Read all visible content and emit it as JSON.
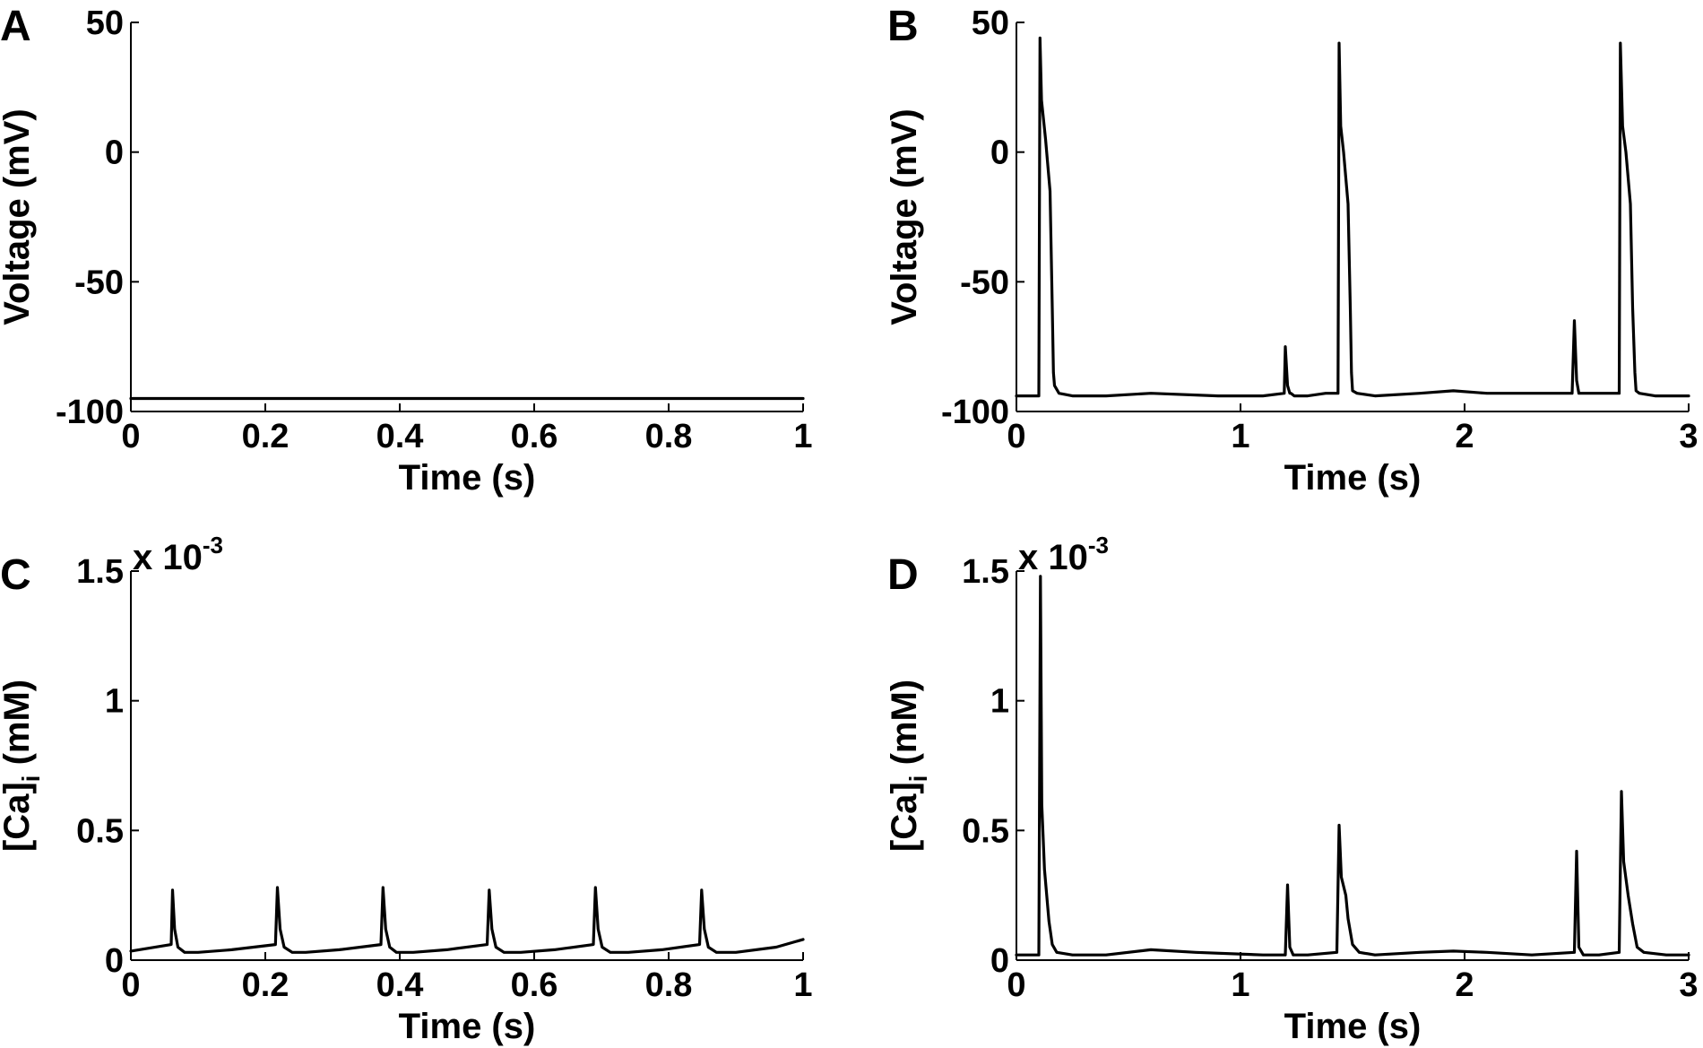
{
  "chart_data": [
    {
      "id": "A",
      "panel_label": "A",
      "type": "line",
      "xlabel": "Time (s)",
      "ylabel": "Voltage (mV)",
      "xlim": [
        0,
        1
      ],
      "ylim": [
        -100,
        50
      ],
      "xticks": [
        0,
        0.2,
        0.4,
        0.6,
        0.8,
        1
      ],
      "xtick_labels": [
        "0",
        "0.2",
        "0.4",
        "0.6",
        "0.8",
        "1"
      ],
      "yticks": [
        -100,
        -50,
        0,
        50
      ],
      "ytick_labels": [
        "-100",
        "-50",
        "0",
        "50"
      ],
      "exponent": null,
      "series": [
        {
          "x": [
            0,
            1
          ],
          "y": [
            -95,
            -95
          ]
        }
      ]
    },
    {
      "id": "B",
      "panel_label": "B",
      "type": "line",
      "xlabel": "Time (s)",
      "ylabel": "Voltage (mV)",
      "xlim": [
        0,
        3
      ],
      "ylim": [
        -100,
        50
      ],
      "xticks": [
        0,
        1,
        2,
        3
      ],
      "xtick_labels": [
        "0",
        "1",
        "2",
        "3"
      ],
      "yticks": [
        -100,
        -50,
        0,
        50
      ],
      "ytick_labels": [
        "-100",
        "-50",
        "0",
        "50"
      ],
      "exponent": null,
      "series": [
        {
          "x": [
            0,
            0.1,
            0.105,
            0.112,
            0.13,
            0.15,
            0.16,
            0.165,
            0.17,
            0.19,
            0.25,
            0.4,
            0.6,
            0.9,
            1.1,
            1.195,
            1.2,
            1.21,
            1.22,
            1.225,
            1.24,
            1.3,
            1.38,
            1.435,
            1.44,
            1.447,
            1.46,
            1.48,
            1.49,
            1.495,
            1.5,
            1.52,
            1.6,
            1.8,
            1.95,
            2.1,
            2.3,
            2.48,
            2.49,
            2.5,
            2.51,
            2.52,
            2.55,
            2.6,
            2.69,
            2.695,
            2.705,
            2.72,
            2.74,
            2.75,
            2.76,
            2.765,
            2.78,
            2.85,
            3.0
          ],
          "y": [
            -94,
            -94,
            44,
            20,
            5,
            -15,
            -60,
            -85,
            -90,
            -93,
            -94,
            -94,
            -93,
            -94,
            -94,
            -93,
            -75,
            -90,
            -93,
            -93,
            -94,
            -94,
            -93,
            -93,
            42,
            10,
            0,
            -20,
            -60,
            -85,
            -92,
            -93,
            -94,
            -93,
            -92,
            -93,
            -93,
            -93,
            -65,
            -88,
            -93,
            -93,
            -93,
            -93,
            -93,
            42,
            10,
            0,
            -20,
            -60,
            -85,
            -92,
            -93,
            -94,
            -94
          ]
        }
      ]
    },
    {
      "id": "C",
      "panel_label": "C",
      "type": "line",
      "xlabel": "Time (s)",
      "ylabel": "[Ca]",
      "ylabel_sub": "i",
      "ylabel_unit": " (mM)",
      "xlim": [
        0,
        1
      ],
      "ylim": [
        0,
        1.5
      ],
      "xticks": [
        0,
        0.2,
        0.4,
        0.6,
        0.8,
        1
      ],
      "xtick_labels": [
        "0",
        "0.2",
        "0.4",
        "0.6",
        "0.8",
        "1"
      ],
      "yticks": [
        0,
        0.5,
        1,
        1.5
      ],
      "ytick_labels": [
        "0",
        "0.5",
        "1",
        "1.5"
      ],
      "exponent": {
        "text": "x 10",
        "power": "-3"
      },
      "series": [
        {
          "x": [
            0,
            0.06,
            0.062,
            0.065,
            0.07,
            0.08,
            0.1,
            0.15,
            0.215,
            0.218,
            0.222,
            0.228,
            0.24,
            0.26,
            0.31,
            0.372,
            0.375,
            0.379,
            0.385,
            0.395,
            0.42,
            0.47,
            0.53,
            0.533,
            0.537,
            0.543,
            0.555,
            0.58,
            0.63,
            0.688,
            0.691,
            0.695,
            0.701,
            0.713,
            0.74,
            0.79,
            0.846,
            0.849,
            0.853,
            0.859,
            0.871,
            0.9,
            0.96,
            1.0
          ],
          "y": [
            0.035,
            0.06,
            0.27,
            0.12,
            0.05,
            0.03,
            0.03,
            0.04,
            0.06,
            0.28,
            0.12,
            0.05,
            0.03,
            0.03,
            0.04,
            0.06,
            0.28,
            0.12,
            0.05,
            0.03,
            0.03,
            0.04,
            0.06,
            0.27,
            0.12,
            0.05,
            0.03,
            0.03,
            0.04,
            0.06,
            0.28,
            0.12,
            0.05,
            0.03,
            0.03,
            0.04,
            0.06,
            0.27,
            0.12,
            0.05,
            0.03,
            0.03,
            0.05,
            0.08
          ]
        }
      ]
    },
    {
      "id": "D",
      "panel_label": "D",
      "type": "line",
      "xlabel": "Time (s)",
      "ylabel": "[Ca]",
      "ylabel_sub": "i",
      "ylabel_unit": " (mM)",
      "xlim": [
        0,
        3
      ],
      "ylim": [
        0,
        1.5
      ],
      "xticks": [
        0,
        1,
        2,
        3
      ],
      "xtick_labels": [
        "0",
        "1",
        "2",
        "3"
      ],
      "yticks": [
        0,
        0.5,
        1,
        1.5
      ],
      "ytick_labels": [
        "0",
        "0.5",
        "1",
        "1.5"
      ],
      "exponent": {
        "text": "x 10",
        "power": "-3"
      },
      "series": [
        {
          "x": [
            0,
            0.1,
            0.107,
            0.113,
            0.125,
            0.145,
            0.16,
            0.18,
            0.25,
            0.4,
            0.6,
            0.8,
            1.1,
            1.2,
            1.21,
            1.22,
            1.235,
            1.3,
            1.43,
            1.44,
            1.45,
            1.47,
            1.48,
            1.5,
            1.53,
            1.6,
            1.8,
            1.95,
            2.1,
            2.3,
            2.49,
            2.5,
            2.51,
            2.53,
            2.6,
            2.69,
            2.7,
            2.71,
            2.73,
            2.75,
            2.77,
            2.8,
            2.9,
            3.0
          ],
          "y": [
            0.02,
            0.02,
            1.48,
            0.6,
            0.35,
            0.15,
            0.06,
            0.03,
            0.02,
            0.02,
            0.04,
            0.03,
            0.02,
            0.02,
            0.29,
            0.05,
            0.02,
            0.02,
            0.03,
            0.52,
            0.32,
            0.25,
            0.16,
            0.06,
            0.03,
            0.02,
            0.03,
            0.035,
            0.03,
            0.02,
            0.03,
            0.42,
            0.05,
            0.02,
            0.02,
            0.03,
            0.65,
            0.38,
            0.25,
            0.14,
            0.05,
            0.03,
            0.02,
            0.02
          ]
        }
      ]
    }
  ]
}
